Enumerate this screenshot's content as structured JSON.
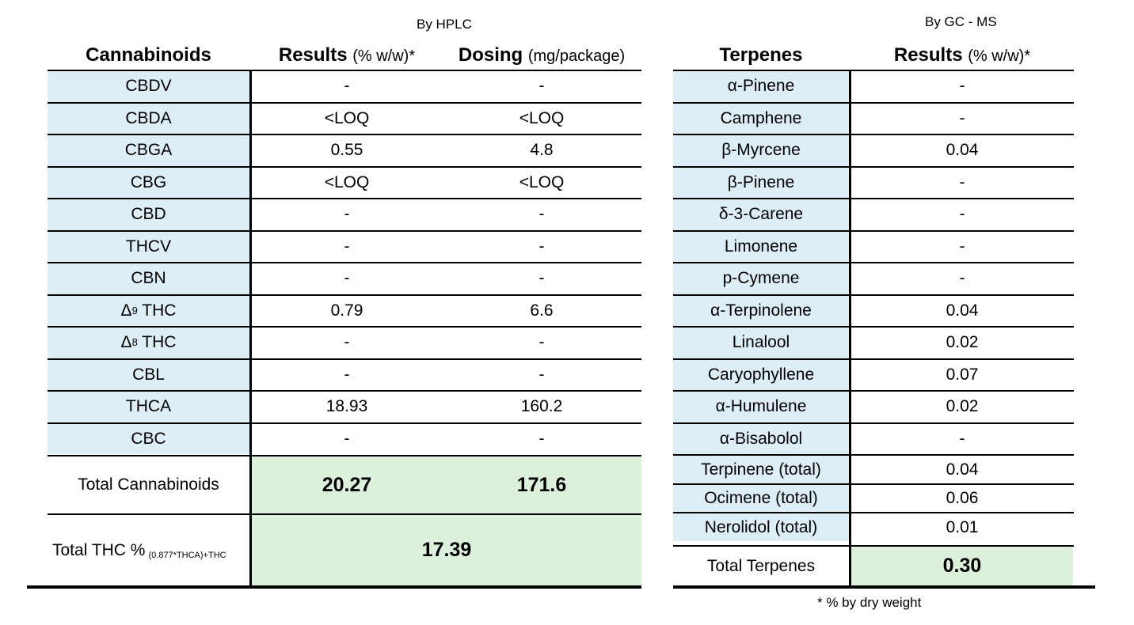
{
  "captions": {
    "hplc": "By HPLC",
    "gcms": "By GC - MS",
    "footnote": "* % by dry weight"
  },
  "cannabinoids": {
    "headers": {
      "name": "Cannabinoids",
      "results": "Results",
      "results_unit": "(% w/w)*",
      "dosing": "Dosing",
      "dosing_unit": "(mg/package)"
    },
    "rows": [
      {
        "name": "CBDV",
        "result": "-",
        "dosing": "-"
      },
      {
        "name": "CBDA",
        "result": "<LOQ",
        "dosing": "<LOQ"
      },
      {
        "name": "CBGA",
        "result": "0.55",
        "dosing": "4.8"
      },
      {
        "name": "CBG",
        "result": "<LOQ",
        "dosing": "<LOQ"
      },
      {
        "name": "CBD",
        "result": "-",
        "dosing": "-"
      },
      {
        "name": "THCV",
        "result": "-",
        "dosing": "-"
      },
      {
        "name": "CBN",
        "result": "-",
        "dosing": "-"
      },
      {
        "name": "Δ",
        "sup": "9",
        "suffix": " THC",
        "result": "0.79",
        "dosing": "6.6"
      },
      {
        "name": "Δ",
        "sup": "8",
        "suffix": " THC",
        "result": "-",
        "dosing": "-"
      },
      {
        "name": "CBL",
        "result": "-",
        "dosing": "-"
      },
      {
        "name": "THCA",
        "result": "18.93",
        "dosing": "160.2"
      },
      {
        "name": "CBC",
        "result": "-",
        "dosing": "-"
      }
    ],
    "total": {
      "label": "Total Cannabinoids",
      "result": "20.27",
      "dosing": "171.6"
    },
    "total_thc": {
      "label": "Total THC %",
      "formula": "(0.877*THCA)+THC",
      "value": "17.39"
    }
  },
  "terpenes": {
    "headers": {
      "name": "Terpenes",
      "results": "Results",
      "results_unit": "(% w/w)*"
    },
    "rows": [
      {
        "name": "α-Pinene",
        "result": "-"
      },
      {
        "name": "Camphene",
        "result": "-"
      },
      {
        "name": "β-Myrcene",
        "result": "0.04"
      },
      {
        "name": "β-Pinene",
        "result": "-"
      },
      {
        "name": "δ-3-Carene",
        "result": "-"
      },
      {
        "name": "Limonene",
        "result": "-"
      },
      {
        "name": "p-Cymene",
        "result": "-"
      },
      {
        "name": "α-Terpinolene",
        "result": "0.04"
      },
      {
        "name": "Linalool",
        "result": "0.02"
      },
      {
        "name": "Caryophyllene",
        "result": "0.07"
      },
      {
        "name": "α-Humulene",
        "result": "0.02"
      },
      {
        "name": "α-Bisabolol",
        "result": "-"
      },
      {
        "name": "Terpinene (total)",
        "result": "0.04"
      },
      {
        "name": "Ocimene (total)",
        "result": "0.06"
      },
      {
        "name": "Nerolidol (total)",
        "result": "0.01"
      }
    ],
    "total": {
      "label": "Total Terpenes",
      "result": "0.30"
    }
  }
}
